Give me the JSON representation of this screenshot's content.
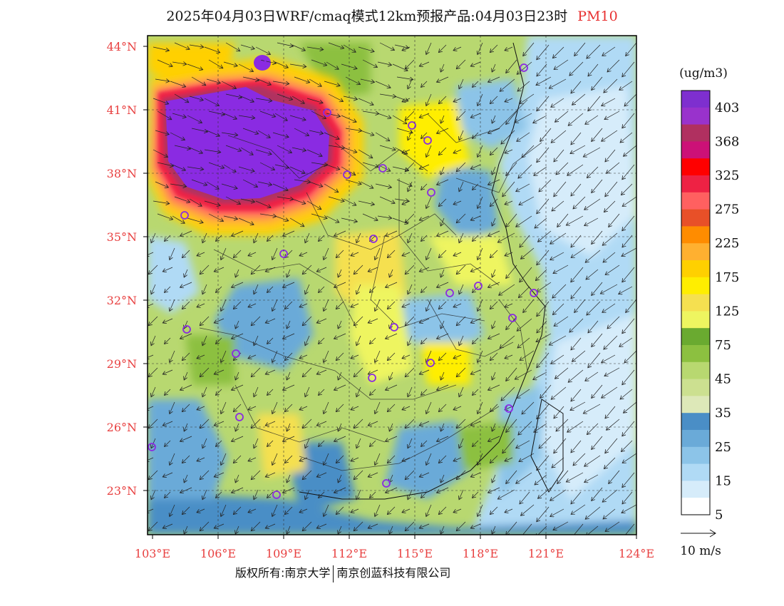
{
  "title": {
    "main": "2025年04月03日WRF/cmaq模式12km预报产品:04月03日23时",
    "pollutant": "PM10"
  },
  "map": {
    "lat_labels": [
      "44°N",
      "41°N",
      "38°N",
      "35°N",
      "32°N",
      "29°N",
      "26°N",
      "23°N"
    ],
    "lon_labels": [
      "103°E",
      "106°E",
      "109°E",
      "112°E",
      "115°E",
      "118°E",
      "121°E",
      "124°E"
    ],
    "label_color": "#e84040",
    "frame_color": "#000000"
  },
  "legend": {
    "unit": "(ug/m3)",
    "labels": [
      "403",
      "368",
      "325",
      "275",
      "225",
      "175",
      "125",
      "75",
      "45",
      "35",
      "25",
      "15",
      "5"
    ],
    "colors": [
      "#7e2fcf",
      "#9932cc",
      "#b03060",
      "#cc1177",
      "#ff0000",
      "#ee2244",
      "#ff6060",
      "#e85028",
      "#ff8c00",
      "#ffb030",
      "#ffd000",
      "#ffee00",
      "#f5e050",
      "#eef560",
      "#6aaa30",
      "#8cc040",
      "#b8d870",
      "#cce090",
      "#dde8b8",
      "#4a8ec6",
      "#6aaad8",
      "#8cc4e8",
      "#b0daf5",
      "#d6ecfa",
      "#ffffff"
    ]
  },
  "wind_scale": {
    "label": "10 m/s"
  },
  "footer": {
    "left": "版权所有:南京大学",
    "right": "南京创蓝科技有限公司"
  }
}
